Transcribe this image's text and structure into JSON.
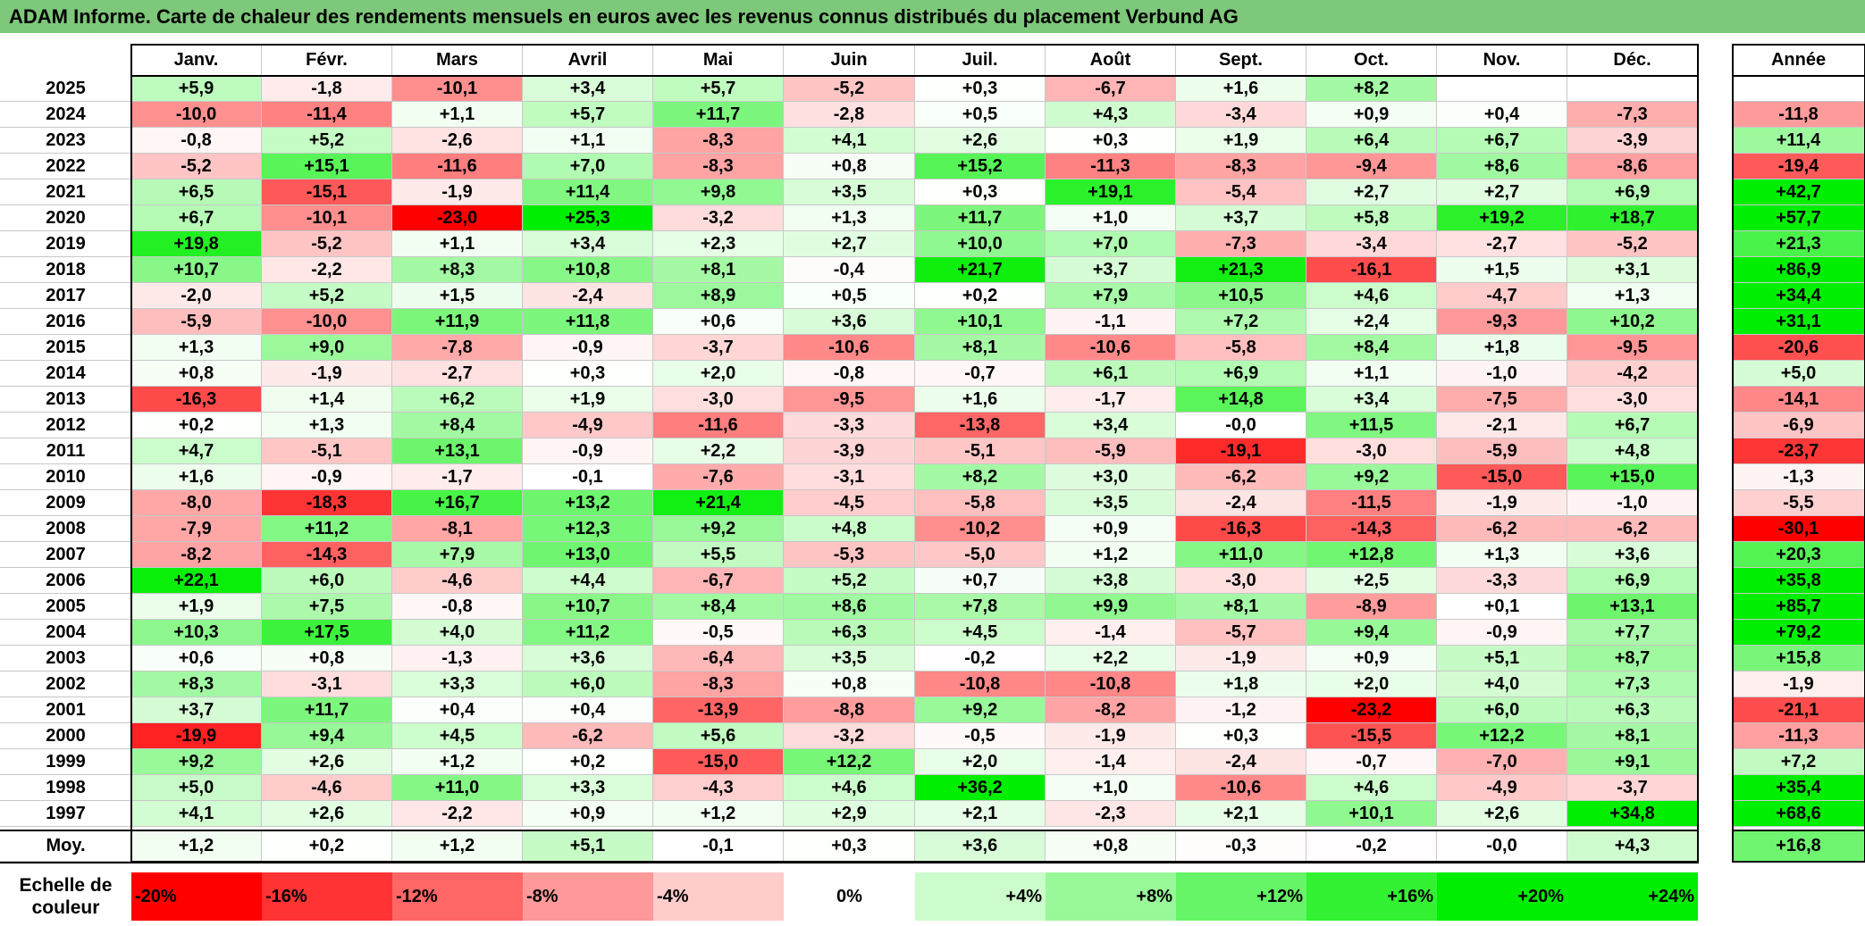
{
  "title": "ADAM Informe. Carte de chaleur des rendements mensuels en euros avec les revenus connus distribués du placement Verbund AG",
  "chart_data": {
    "type": "heatmap",
    "title": "ADAM Informe. Carte de chaleur des rendements mensuels en euros avec les revenus connus distribués du placement Verbund AG",
    "columns": [
      "Janv.",
      "Févr.",
      "Mars",
      "Avril",
      "Mai",
      "Juin",
      "Juil.",
      "Août",
      "Sept.",
      "Oct.",
      "Nov.",
      "Déc."
    ],
    "year_column": "Année",
    "rows": [
      {
        "label": "2025",
        "values": [
          "+5,9",
          "-1,8",
          "-10,1",
          "+3,4",
          "+5,7",
          "-5,2",
          "+0,3",
          "-6,7",
          "+1,6",
          "+8,2",
          "",
          ""
        ],
        "year": ""
      },
      {
        "label": "2024",
        "values": [
          "-10,0",
          "-11,4",
          "+1,1",
          "+5,7",
          "+11,7",
          "-2,8",
          "+0,5",
          "+4,3",
          "-3,4",
          "+0,9",
          "+0,4",
          "-7,3"
        ],
        "year": "-11,8"
      },
      {
        "label": "2023",
        "values": [
          "-0,8",
          "+5,2",
          "-2,6",
          "+1,1",
          "-8,3",
          "+4,1",
          "+2,6",
          "+0,3",
          "+1,9",
          "+6,4",
          "+6,7",
          "-3,9"
        ],
        "year": "+11,4"
      },
      {
        "label": "2022",
        "values": [
          "-5,2",
          "+15,1",
          "-11,6",
          "+7,0",
          "-8,3",
          "+0,8",
          "+15,2",
          "-11,3",
          "-8,3",
          "-9,4",
          "+8,6",
          "-8,6"
        ],
        "year": "-19,4"
      },
      {
        "label": "2021",
        "values": [
          "+6,5",
          "-15,1",
          "-1,9",
          "+11,4",
          "+9,8",
          "+3,5",
          "+0,3",
          "+19,1",
          "-5,4",
          "+2,7",
          "+2,7",
          "+6,9"
        ],
        "year": "+42,7"
      },
      {
        "label": "2020",
        "values": [
          "+6,7",
          "-10,1",
          "-23,0",
          "+25,3",
          "-3,2",
          "+1,3",
          "+11,7",
          "+1,0",
          "+3,7",
          "+5,8",
          "+19,2",
          "+18,7"
        ],
        "year": "+57,7"
      },
      {
        "label": "2019",
        "values": [
          "+19,8",
          "-5,2",
          "+1,1",
          "+3,4",
          "+2,3",
          "+2,7",
          "+10,0",
          "+7,0",
          "-7,3",
          "-3,4",
          "-2,7",
          "-5,2"
        ],
        "year": "+21,3"
      },
      {
        "label": "2018",
        "values": [
          "+10,7",
          "-2,2",
          "+8,3",
          "+10,8",
          "+8,1",
          "-0,4",
          "+21,7",
          "+3,7",
          "+21,3",
          "-16,1",
          "+1,5",
          "+3,1"
        ],
        "year": "+86,9"
      },
      {
        "label": "2017",
        "values": [
          "-2,0",
          "+5,2",
          "+1,5",
          "-2,4",
          "+8,9",
          "+0,5",
          "+0,2",
          "+7,9",
          "+10,5",
          "+4,6",
          "-4,7",
          "+1,3"
        ],
        "year": "+34,4"
      },
      {
        "label": "2016",
        "values": [
          "-5,9",
          "-10,0",
          "+11,9",
          "+11,8",
          "+0,6",
          "+3,6",
          "+10,1",
          "-1,1",
          "+7,2",
          "+2,4",
          "-9,3",
          "+10,2"
        ],
        "year": "+31,1"
      },
      {
        "label": "2015",
        "values": [
          "+1,3",
          "+9,0",
          "-7,8",
          "-0,9",
          "-3,7",
          "-10,6",
          "+8,1",
          "-10,6",
          "-5,8",
          "+8,4",
          "+1,8",
          "-9,5"
        ],
        "year": "-20,6"
      },
      {
        "label": "2014",
        "values": [
          "+0,8",
          "-1,9",
          "-2,7",
          "+0,3",
          "+2,0",
          "-0,8",
          "-0,7",
          "+6,1",
          "+6,9",
          "+1,1",
          "-1,0",
          "-4,2"
        ],
        "year": "+5,0"
      },
      {
        "label": "2013",
        "values": [
          "-16,3",
          "+1,4",
          "+6,2",
          "+1,9",
          "-3,0",
          "-9,5",
          "+1,6",
          "-1,7",
          "+14,8",
          "+3,4",
          "-7,5",
          "-3,0"
        ],
        "year": "-14,1"
      },
      {
        "label": "2012",
        "values": [
          "+0,2",
          "+1,3",
          "+8,4",
          "-4,9",
          "-11,6",
          "-3,3",
          "-13,8",
          "+3,4",
          "-0,0",
          "+11,5",
          "-2,1",
          "+6,7"
        ],
        "year": "-6,9"
      },
      {
        "label": "2011",
        "values": [
          "+4,7",
          "-5,1",
          "+13,1",
          "-0,9",
          "+2,2",
          "-3,9",
          "-5,1",
          "-5,9",
          "-19,1",
          "-3,0",
          "-5,9",
          "+4,8"
        ],
        "year": "-23,7"
      },
      {
        "label": "2010",
        "values": [
          "+1,6",
          "-0,9",
          "-1,7",
          "-0,1",
          "-7,6",
          "-3,1",
          "+8,2",
          "+3,0",
          "-6,2",
          "+9,2",
          "-15,0",
          "+15,0"
        ],
        "year": "-1,3"
      },
      {
        "label": "2009",
        "values": [
          "-8,0",
          "-18,3",
          "+16,7",
          "+13,2",
          "+21,4",
          "-4,5",
          "-5,8",
          "+3,5",
          "-2,4",
          "-11,5",
          "-1,9",
          "-1,0"
        ],
        "year": "-5,5"
      },
      {
        "label": "2008",
        "values": [
          "-7,9",
          "+11,2",
          "-8,1",
          "+12,3",
          "+9,2",
          "+4,8",
          "-10,2",
          "+0,9",
          "-16,3",
          "-14,3",
          "-6,2",
          "-6,2"
        ],
        "year": "-30,1"
      },
      {
        "label": "2007",
        "values": [
          "-8,2",
          "-14,3",
          "+7,9",
          "+13,0",
          "+5,5",
          "-5,3",
          "-5,0",
          "+1,2",
          "+11,0",
          "+12,8",
          "+1,3",
          "+3,6"
        ],
        "year": "+20,3"
      },
      {
        "label": "2006",
        "values": [
          "+22,1",
          "+6,0",
          "-4,6",
          "+4,4",
          "-6,7",
          "+5,2",
          "+0,7",
          "+3,8",
          "-3,0",
          "+2,5",
          "-3,3",
          "+6,9"
        ],
        "year": "+35,8"
      },
      {
        "label": "2005",
        "values": [
          "+1,9",
          "+7,5",
          "-0,8",
          "+10,7",
          "+8,4",
          "+8,6",
          "+7,8",
          "+9,9",
          "+8,1",
          "-8,9",
          "+0,1",
          "+13,1"
        ],
        "year": "+85,7"
      },
      {
        "label": "2004",
        "values": [
          "+10,3",
          "+17,5",
          "+4,0",
          "+11,2",
          "-0,5",
          "+6,3",
          "+4,5",
          "-1,4",
          "-5,7",
          "+9,4",
          "-0,9",
          "+7,7"
        ],
        "year": "+79,2"
      },
      {
        "label": "2003",
        "values": [
          "+0,6",
          "+0,8",
          "-1,3",
          "+3,6",
          "-6,4",
          "+3,5",
          "-0,2",
          "+2,2",
          "-1,9",
          "+0,9",
          "+5,1",
          "+8,7"
        ],
        "year": "+15,8"
      },
      {
        "label": "2002",
        "values": [
          "+8,3",
          "-3,1",
          "+3,3",
          "+6,0",
          "-8,3",
          "+0,8",
          "-10,8",
          "-10,8",
          "+1,8",
          "+2,0",
          "+4,0",
          "+7,3"
        ],
        "year": "-1,9"
      },
      {
        "label": "2001",
        "values": [
          "+3,7",
          "+11,7",
          "+0,4",
          "+0,4",
          "-13,9",
          "-8,8",
          "+9,2",
          "-8,2",
          "-1,2",
          "-23,2",
          "+6,0",
          "+6,3"
        ],
        "year": "-21,1"
      },
      {
        "label": "2000",
        "values": [
          "-19,9",
          "+9,4",
          "+4,5",
          "-6,2",
          "+5,6",
          "-3,2",
          "-0,5",
          "-1,9",
          "+0,3",
          "-15,5",
          "+12,2",
          "+8,1"
        ],
        "year": "-11,3"
      },
      {
        "label": "1999",
        "values": [
          "+9,2",
          "+2,6",
          "+1,2",
          "+0,2",
          "-15,0",
          "+12,2",
          "+2,0",
          "-1,4",
          "-2,4",
          "-0,7",
          "-7,0",
          "+9,1"
        ],
        "year": "+7,2"
      },
      {
        "label": "1998",
        "values": [
          "+5,0",
          "-4,6",
          "+11,0",
          "+3,3",
          "-4,3",
          "+4,6",
          "+36,2",
          "+1,0",
          "-10,6",
          "+4,6",
          "-4,9",
          "-3,7"
        ],
        "year": "+35,4"
      },
      {
        "label": "1997",
        "values": [
          "+4,1",
          "+2,6",
          "-2,2",
          "+0,9",
          "+1,2",
          "+2,9",
          "+2,1",
          "-2,3",
          "+2,1",
          "+10,1",
          "+2,6",
          "+34,8"
        ],
        "year": "+68,6"
      }
    ],
    "average": {
      "label": "Moy.",
      "values": [
        "+1,2",
        "+0,2",
        "+1,2",
        "+5,1",
        "-0,1",
        "+0,3",
        "+3,6",
        "+0,8",
        "-0,3",
        "-0,2",
        "-0,0",
        "+4,3"
      ],
      "year": "+16,8"
    },
    "scale": {
      "label": "Echelle de couleur",
      "steps": [
        {
          "label": "-20%",
          "value": -20
        },
        {
          "label": "-16%",
          "value": -16
        },
        {
          "label": "-12%",
          "value": -12
        },
        {
          "label": "-8%",
          "value": -8
        },
        {
          "label": "-4%",
          "value": -4
        },
        {
          "label": "0%",
          "value": 0
        },
        {
          "label": "+4%",
          "value": 4
        },
        {
          "label": "+8%",
          "value": 8
        },
        {
          "label": "+12%",
          "value": 12
        },
        {
          "label": "+16%",
          "value": 16
        },
        {
          "label": "+20%",
          "value": 20
        },
        {
          "label": "+24%",
          "value": 24
        }
      ]
    },
    "colors": {
      "negative": "#ff0000",
      "neutral": "#ffffff",
      "positive": "#00ee00",
      "title_bar": "#7dc87a"
    }
  }
}
